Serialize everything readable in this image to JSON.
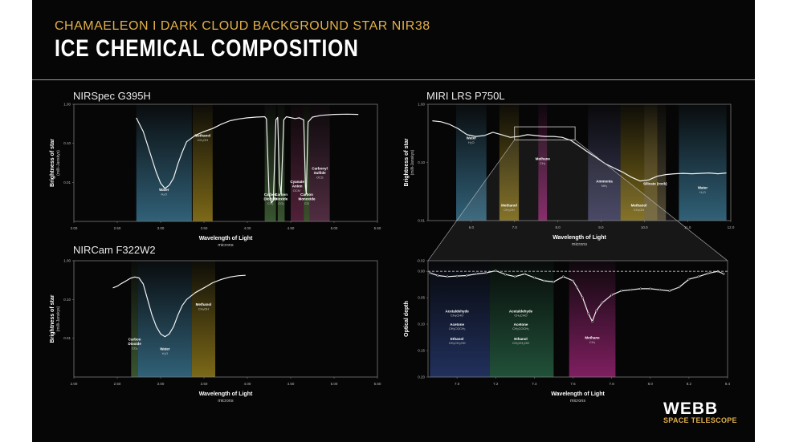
{
  "header": {
    "supertitle": "CHAMAELEON I DARK CLOUD BACKGROUND STAR NIR38",
    "title": "ICE CHEMICAL COMPOSITION"
  },
  "logo": {
    "name": "WEBB",
    "subtitle": "SPACE TELESCOPE"
  },
  "colors": {
    "water": "#3f7f9e",
    "methanol": "#a48a1e",
    "co2": "#4a6f3e",
    "methane": "#a8277f",
    "ammonia": "#4f4f7a",
    "silicate": "#6a5f42",
    "ocn": "#6a2a4a",
    "co": "#4e6a3a",
    "ocs": "#6a3a55",
    "acetaldehyde": "#2a3e7a",
    "acetaldehyde2": "#2a6a4a"
  },
  "chart_data": [
    {
      "id": "nirspec",
      "type": "line",
      "panel_title": "NIRSpec G395H",
      "xlabel": "Wavelength of Light",
      "xlabel_sub": "microns",
      "ylabel": "Brightness of star",
      "ylabel_sub": "(milli-Janskys)",
      "xlim": [
        2.0,
        5.5
      ],
      "ylim": [
        0.001,
        1.0
      ],
      "yscale": "log",
      "xticks": [
        "2.00",
        "2.50",
        "3.00",
        "3.50",
        "4.00",
        "4.50",
        "5.00",
        "5.50"
      ],
      "xtick_values": [
        2.0,
        2.5,
        3.0,
        3.5,
        4.0,
        4.5,
        5.0,
        5.5
      ],
      "yticks": [
        "1.00",
        "0.10",
        "0.01"
      ],
      "ytick_values": [
        1.0,
        0.1,
        0.01
      ],
      "bands": [
        {
          "x0": 2.72,
          "x1": 3.36,
          "color": "water",
          "label": "Water",
          "formula": "H₂O",
          "ly": 0.0061
        },
        {
          "x0": 3.37,
          "x1": 3.6,
          "color": "methanol",
          "label": "Methanol",
          "formula": "CH₃OH",
          "ly": 0.147
        },
        {
          "x0": 4.2,
          "x1": 4.33,
          "color": "co2",
          "label": "Carbon Dioxide",
          "formula": "CO₂",
          "ly": 0.0045
        },
        {
          "x0": 4.35,
          "x1": 4.43,
          "color": "co2",
          "label": "Carbon Dioxide",
          "formula": "CO₂",
          "ly": 0.0045
        },
        {
          "x0": 4.5,
          "x1": 4.65,
          "color": "ocn",
          "label": "Cyanate Anion",
          "formula": "OCN⁻",
          "ly": 0.0098
        },
        {
          "x0": 4.65,
          "x1": 4.72,
          "color": "co",
          "label": "Carbon Monoxide",
          "formula": "CO",
          "ly": 0.0045
        },
        {
          "x0": 4.72,
          "x1": 4.95,
          "color": "ocs",
          "label": "Carbonyl Sulfide",
          "formula": "OCS",
          "ly": 0.021
        }
      ],
      "series": [
        {
          "x": [
            2.72,
            2.75,
            2.8,
            2.85,
            2.9,
            2.95,
            3.0,
            3.05,
            3.1,
            3.15,
            3.2,
            3.25,
            3.3,
            3.4,
            3.5,
            3.6,
            3.7,
            3.8,
            3.9,
            4.0,
            4.1,
            4.2,
            4.22,
            4.25,
            4.28,
            4.3,
            4.33,
            4.35,
            4.37,
            4.39,
            4.42,
            4.45,
            4.55,
            4.6,
            4.65,
            4.67,
            4.68,
            4.7,
            4.75,
            4.85,
            5.0,
            5.15,
            5.28
          ],
          "y": [
            0.45,
            0.33,
            0.2,
            0.09,
            0.04,
            0.018,
            0.0095,
            0.007,
            0.0085,
            0.013,
            0.03,
            0.06,
            0.11,
            0.16,
            0.2,
            0.24,
            0.31,
            0.38,
            0.42,
            0.45,
            0.47,
            0.48,
            0.42,
            0.005,
            0.003,
            0.0035,
            0.4,
            0.46,
            0.01,
            0.005,
            0.4,
            0.48,
            0.43,
            0.45,
            0.4,
            0.008,
            0.005,
            0.35,
            0.47,
            0.52,
            0.55,
            0.56,
            0.55
          ]
        }
      ]
    },
    {
      "id": "nircam",
      "type": "line",
      "panel_title": "NIRCam F322W2",
      "xlabel": "Wavelength of Light",
      "xlabel_sub": "microns",
      "ylabel": "Brightness of star",
      "ylabel_sub": "(milli-Janskys)",
      "xlim": [
        2.0,
        5.5
      ],
      "ylim": [
        0.001,
        1.0
      ],
      "yscale": "log",
      "xticks": [
        "2.00",
        "2.50",
        "3.00",
        "3.50",
        "4.00",
        "4.50",
        "5.00",
        "5.50"
      ],
      "xtick_values": [
        2.0,
        2.5,
        3.0,
        3.5,
        4.0,
        4.5,
        5.0,
        5.5
      ],
      "yticks": [
        "1.00",
        "0.10",
        "0.01"
      ],
      "ytick_values": [
        1.0,
        0.1,
        0.01
      ],
      "bands": [
        {
          "x0": 2.66,
          "x1": 2.74,
          "color": "co2",
          "label": "Carbon Dioxide",
          "formula": "CO₂",
          "ly": 0.0088
        },
        {
          "x0": 2.74,
          "x1": 3.36,
          "color": "water",
          "label": "Water",
          "formula": "H₂O",
          "ly": 0.0049
        },
        {
          "x0": 3.36,
          "x1": 3.63,
          "color": "methanol",
          "label": "Methanol",
          "formula": "CH₃OH",
          "ly": 0.07
        }
      ],
      "series": [
        {
          "x": [
            2.45,
            2.5,
            2.55,
            2.6,
            2.65,
            2.7,
            2.75,
            2.8,
            2.85,
            2.9,
            2.95,
            3.0,
            3.05,
            3.1,
            3.15,
            3.2,
            3.25,
            3.3,
            3.4,
            3.5,
            3.6,
            3.7,
            3.8,
            3.9,
            3.98
          ],
          "y": [
            0.2,
            0.22,
            0.26,
            0.3,
            0.35,
            0.38,
            0.36,
            0.25,
            0.1,
            0.04,
            0.02,
            0.013,
            0.011,
            0.013,
            0.02,
            0.04,
            0.07,
            0.1,
            0.15,
            0.2,
            0.27,
            0.33,
            0.38,
            0.41,
            0.42
          ]
        }
      ]
    },
    {
      "id": "miri",
      "type": "line",
      "panel_title": "MIRI LRS P750L",
      "xlabel": "Wavelength of Light",
      "xlabel_sub": "microns",
      "ylabel": "Brightness of star",
      "ylabel_sub": "(milli-Janskys)",
      "xlim": [
        5.0,
        12.0
      ],
      "ylim": [
        0.01,
        1.0
      ],
      "yscale": "log",
      "xticks": [
        "6.0",
        "7.0",
        "8.0",
        "9.0",
        "10.0",
        "11.0",
        "12.0"
      ],
      "xtick_values": [
        6.0,
        7.0,
        8.0,
        9.0,
        10.0,
        11.0,
        12.0
      ],
      "yticks": [
        "1.00",
        "0.10",
        "0.01"
      ],
      "ytick_values": [
        1.0,
        0.1,
        0.01
      ],
      "bands": [
        {
          "x0": 5.65,
          "x1": 6.35,
          "color": "water",
          "label": "Water",
          "formula": "H₂O",
          "ly": 0.25
        },
        {
          "x0": 6.65,
          "x1": 7.1,
          "color": "methanol",
          "label": "Methanol",
          "formula": "CH₃OH",
          "ly": 0.0175
        },
        {
          "x0": 7.55,
          "x1": 7.75,
          "color": "methane",
          "label": "Methane",
          "formula": "CH₄",
          "ly": 0.11
        },
        {
          "x0": 8.7,
          "x1": 9.45,
          "color": "ammonia",
          "label": "Ammonia",
          "formula": "NH₃",
          "ly": 0.045
        },
        {
          "x0": 9.45,
          "x1": 10.3,
          "color": "methanol",
          "label": "Methanol",
          "formula": "CH₃OH",
          "ly": 0.0175
        },
        {
          "x0": 10.0,
          "x1": 10.5,
          "color": "silicate",
          "label": "Silicate (rock)",
          "formula": "",
          "ly": 0.041
        },
        {
          "x0": 10.8,
          "x1": 11.9,
          "color": "water",
          "label": "Water",
          "formula": "H₂O",
          "ly": 0.035
        }
      ],
      "series": [
        {
          "x": [
            5.1,
            5.3,
            5.5,
            5.7,
            5.9,
            6.1,
            6.3,
            6.5,
            6.7,
            6.9,
            7.1,
            7.3,
            7.5,
            7.7,
            7.9,
            8.1,
            8.3,
            8.5,
            8.7,
            8.9,
            9.1,
            9.3,
            9.5,
            9.7,
            9.9,
            10.1,
            10.3,
            10.5,
            10.7,
            10.9,
            11.1,
            11.3,
            11.5,
            11.7,
            11.9
          ],
          "y": [
            0.52,
            0.5,
            0.45,
            0.38,
            0.3,
            0.28,
            0.29,
            0.33,
            0.3,
            0.27,
            0.28,
            0.3,
            0.29,
            0.28,
            0.28,
            0.27,
            0.24,
            0.19,
            0.15,
            0.12,
            0.095,
            0.08,
            0.068,
            0.056,
            0.048,
            0.05,
            0.058,
            0.062,
            0.064,
            0.065,
            0.064,
            0.065,
            0.066,
            0.064,
            0.066
          ]
        }
      ],
      "zoom_box": {
        "x0": 7.0,
        "x1": 8.4,
        "y0": 0.245,
        "y1": 0.41
      }
    },
    {
      "id": "optical",
      "type": "line",
      "panel_title": "",
      "xlabel": "Wavelength of Light",
      "xlabel_sub": "microns",
      "ylabel": "Optical depth",
      "ylabel_sub": "",
      "xlim": [
        6.85,
        8.4
      ],
      "ylim": [
        0.2,
        -0.02
      ],
      "yscale": "linear",
      "xticks": [
        "7.0",
        "7.2",
        "7.4",
        "7.6",
        "7.8",
        "8.0",
        "8.2",
        "8.4"
      ],
      "xtick_values": [
        7.0,
        7.2,
        7.4,
        7.6,
        7.8,
        8.0,
        8.2,
        8.4
      ],
      "yticks": [
        "-0.02",
        "0.00",
        "0.05",
        "0.10",
        "0.15",
        "0.20"
      ],
      "ytick_values": [
        -0.02,
        0.0,
        0.05,
        0.1,
        0.15,
        0.2
      ],
      "bands": [
        {
          "x0": 6.86,
          "x1": 7.17,
          "color": "acetaldehyde",
          "label": "",
          "formula": "",
          "ly": 0
        },
        {
          "x0": 7.17,
          "x1": 7.5,
          "color": "acetaldehyde2",
          "label": "",
          "formula": "",
          "ly": 0
        },
        {
          "x0": 7.58,
          "x1": 7.82,
          "color": "methane",
          "label": "Methane",
          "formula": "CH₄",
          "ly": 0.128
        }
      ],
      "labels": [
        {
          "x": 7.0,
          "y": 0.078,
          "label": "Acetaldehyde",
          "formula": "CH₃CHO"
        },
        {
          "x": 7.0,
          "y": 0.103,
          "label": "Acetone",
          "formula": "CH₃COCH₃"
        },
        {
          "x": 7.0,
          "y": 0.13,
          "label": "Ethanol",
          "formula": "CH₃CH₂OH"
        },
        {
          "x": 7.33,
          "y": 0.078,
          "label": "Acetaldehyde",
          "formula": "CH₃CHO"
        },
        {
          "x": 7.33,
          "y": 0.103,
          "label": "Acetone",
          "formula": "CH₃COCH₃"
        },
        {
          "x": 7.33,
          "y": 0.13,
          "label": "Ethanol",
          "formula": "CH₃CH₂OH"
        }
      ],
      "series": [
        {
          "x": [
            6.86,
            6.9,
            6.95,
            7.0,
            7.05,
            7.1,
            7.15,
            7.2,
            7.25,
            7.3,
            7.35,
            7.4,
            7.45,
            7.5,
            7.55,
            7.6,
            7.62,
            7.65,
            7.68,
            7.7,
            7.72,
            7.75,
            7.8,
            7.85,
            7.9,
            7.95,
            8.0,
            8.05,
            8.1,
            8.15,
            8.2,
            8.25,
            8.3,
            8.35,
            8.38
          ],
          "y": [
            0.003,
            0.008,
            0.01,
            0.009,
            0.008,
            0.005,
            0.003,
            -0.001,
            0.006,
            0.01,
            0.005,
            0.012,
            0.018,
            0.02,
            0.01,
            0.018,
            0.03,
            0.05,
            0.08,
            0.095,
            0.075,
            0.06,
            0.045,
            0.037,
            0.035,
            0.033,
            0.033,
            0.035,
            0.037,
            0.03,
            0.015,
            0.01,
            0.004,
            0.0,
            0.005
          ]
        },
        {
          "name": "",
          "x": [
            6.85,
            8.4
          ],
          "y": [
            0.0,
            0.0
          ]
        }
      ]
    }
  ]
}
